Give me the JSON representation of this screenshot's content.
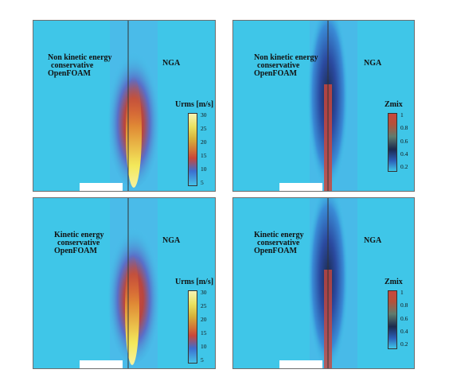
{
  "panels": [
    {
      "label_lines": [
        "Non kinetic energy",
        "conservative",
        "OpenFOAM"
      ],
      "right_label": "NGA",
      "colorbar": {
        "title": "Urms [m/s]",
        "ticks": [
          "30",
          "25",
          "20",
          "15",
          "10",
          "5"
        ]
      },
      "field": "velocity"
    },
    {
      "label_lines": [
        "Non kinetic energy",
        "conservative",
        "OpenFOAM"
      ],
      "right_label": "NGA",
      "colorbar": {
        "title": "Zmix",
        "ticks": [
          "1",
          "0.8",
          "0.6",
          "0.4",
          "0.2"
        ]
      },
      "field": "mixture"
    },
    {
      "label_lines": [
        "Kinetic energy",
        "conservative",
        "OpenFOAM"
      ],
      "right_label": "NGA",
      "colorbar": {
        "title": "Urms [m/s]",
        "ticks": [
          "30",
          "25",
          "20",
          "15",
          "10",
          "5"
        ]
      },
      "field": "velocity"
    },
    {
      "label_lines": [
        "Kinetic energy",
        "conservative",
        "OpenFOAM"
      ],
      "right_label": "NGA",
      "colorbar": {
        "title": "Zmix",
        "ticks": [
          "1",
          "0.8",
          "0.6",
          "0.4",
          "0.2"
        ]
      },
      "field": "mixture"
    }
  ],
  "colors": {
    "background_field": "#3fc6e8",
    "velocity_scale": [
      "#3a7bd5",
      "#36c0e6",
      "#5fd39a",
      "#d8d43a",
      "#e89a3a",
      "#c9423a"
    ],
    "mixture_scale": [
      "#3fc6e8",
      "#2b5fb8",
      "#1b2a4e",
      "#4a7d6a",
      "#b5523a",
      "#c9473d"
    ]
  }
}
